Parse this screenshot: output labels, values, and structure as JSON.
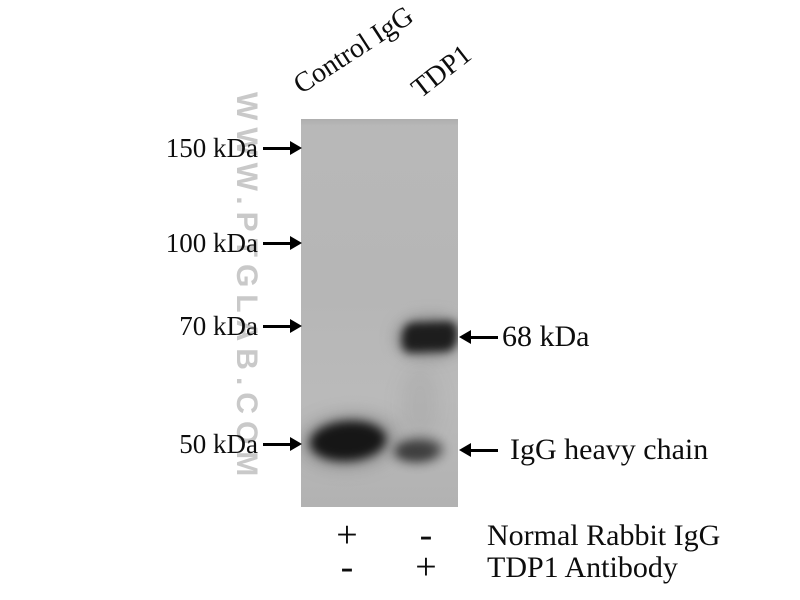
{
  "figure": {
    "watermark": "WWW.PTGLAB.COM",
    "lane_labels": [
      {
        "label": "Control IgG"
      },
      {
        "label": "TDP1"
      }
    ],
    "mw_markers": [
      {
        "label": "150 kDa"
      },
      {
        "label": "100 kDa"
      },
      {
        "label": "70 kDa"
      },
      {
        "label": "50 kDa"
      }
    ],
    "band_annotations": [
      {
        "label": "68 kDa"
      },
      {
        "label": "IgG heavy chain"
      }
    ],
    "treatment_table": {
      "rows": [
        {
          "lane1": "+",
          "lane2": "-",
          "label": "Normal Rabbit IgG"
        },
        {
          "lane1": "-",
          "lane2": "+",
          "label": "TDP1 Antibody"
        }
      ]
    },
    "blot": {
      "gel_color": "#b6b6b6",
      "band_dark_color": "#1b1b1b",
      "band_faint_color": "#474747",
      "watermark_color": "#c9c9c9",
      "bands": [
        {
          "lane": "TDP1",
          "position": "68 kDa",
          "intensity": "strong"
        },
        {
          "lane": "Control IgG",
          "position": "~50 kDa",
          "intensity": "strong"
        },
        {
          "lane": "TDP1",
          "position": "~50 kDa",
          "intensity": "weak"
        }
      ]
    }
  }
}
